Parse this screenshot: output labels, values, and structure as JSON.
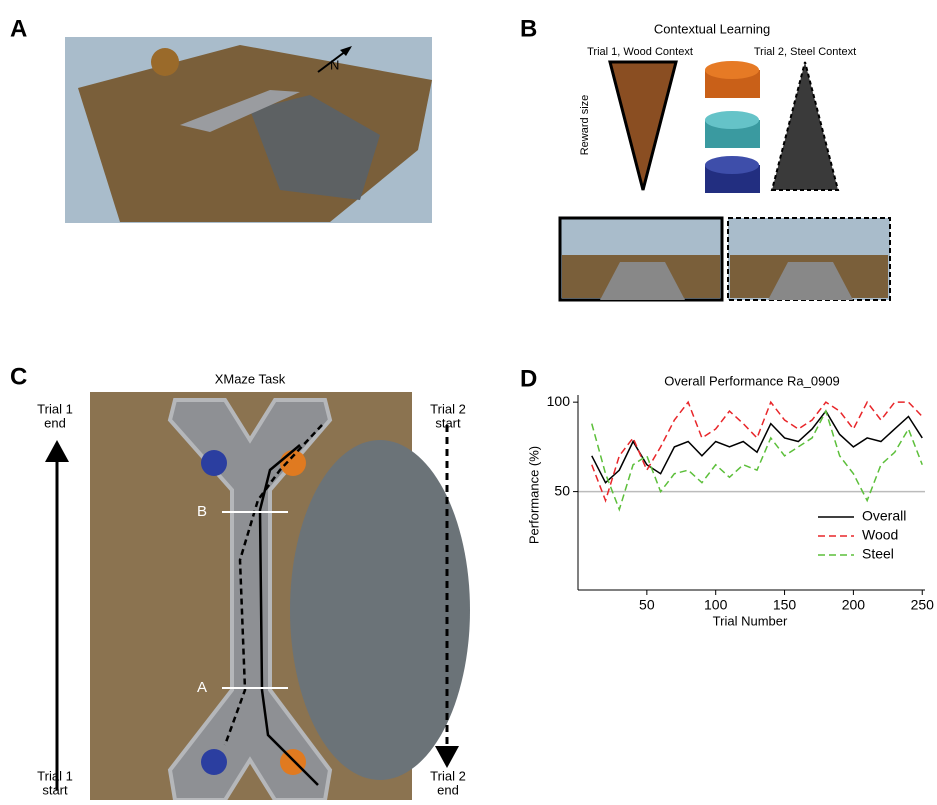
{
  "panels": {
    "a": {
      "letter": "A",
      "compass": "N"
    },
    "b": {
      "letter": "B",
      "title": "Contextual Learning",
      "trial1": "Trial 1, Wood Context",
      "trial2": "Trial 2, Steel Context",
      "ylabel": "Reward size"
    },
    "c": {
      "letter": "C",
      "title": "XMaze Task",
      "trial1_end": [
        "Trial 1",
        "end"
      ],
      "trial2_start": [
        "Trial 2",
        "start"
      ],
      "trial1_start": [
        "Trial 1",
        "start"
      ],
      "trial2_end": [
        "Trial 2",
        "end"
      ],
      "gate_b": "B",
      "gate_a": "A"
    },
    "d": {
      "letter": "D"
    }
  },
  "chart_data": {
    "type": "line",
    "title": "Overall Performance Ra_0909",
    "xlabel": "Trial Number",
    "ylabel": "Performance (%)",
    "x": [
      10,
      20,
      30,
      40,
      50,
      60,
      70,
      80,
      90,
      100,
      110,
      120,
      130,
      140,
      150,
      160,
      170,
      180,
      190,
      200,
      210,
      220,
      230,
      240,
      250
    ],
    "series": [
      {
        "name": "Overall",
        "color": "#000000",
        "dash": "solid",
        "values": [
          70,
          55,
          62,
          78,
          65,
          60,
          75,
          78,
          70,
          78,
          75,
          78,
          72,
          88,
          80,
          78,
          85,
          95,
          82,
          75,
          80,
          78,
          85,
          92,
          80
        ]
      },
      {
        "name": "Wood",
        "color": "#e8262a",
        "dash": "dashed",
        "values": [
          65,
          45,
          70,
          80,
          62,
          75,
          90,
          100,
          80,
          85,
          95,
          88,
          80,
          100,
          90,
          85,
          90,
          100,
          95,
          85,
          100,
          90,
          100,
          100,
          92
        ]
      },
      {
        "name": "Steel",
        "color": "#5cbf3a",
        "dash": "dashed",
        "values": [
          88,
          60,
          40,
          65,
          70,
          50,
          60,
          62,
          55,
          65,
          58,
          65,
          62,
          80,
          70,
          75,
          80,
          95,
          70,
          60,
          45,
          65,
          72,
          85,
          65
        ]
      }
    ],
    "xlim": [
      0,
      252
    ],
    "ylim": [
      -5,
      104
    ],
    "xticks": [
      50,
      100,
      150,
      200,
      250
    ],
    "yticks": [
      50,
      100
    ],
    "reference_line": 50,
    "legend": "lower right"
  }
}
